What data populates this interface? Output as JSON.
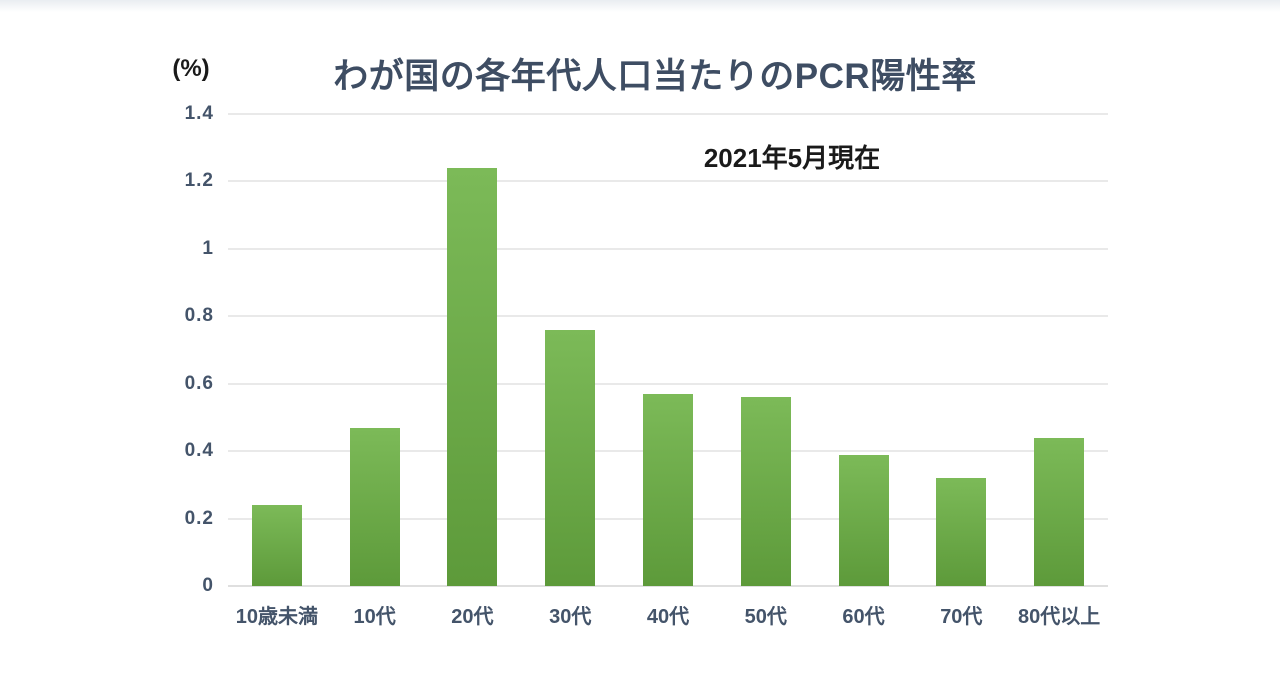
{
  "chart_data": {
    "type": "bar",
    "title": "わが国の各年代人口当たりのPCR陽性率",
    "subtitle": "2021年5月現在",
    "unit_label": "(%)",
    "categories": [
      "10歳未満",
      "10代",
      "20代",
      "30代",
      "40代",
      "50代",
      "60代",
      "70代",
      "80代以上"
    ],
    "values": [
      0.24,
      0.47,
      1.24,
      0.76,
      0.57,
      0.56,
      0.39,
      0.32,
      0.44
    ],
    "ylabel": "(%)",
    "xlabel": "",
    "ylim": [
      0,
      1.4
    ],
    "ytick_step": 0.2,
    "yticks": [
      "0",
      "0.2",
      "0.4",
      "0.6",
      "0.8",
      "1",
      "1.2",
      "1.4"
    ],
    "grid": true,
    "legend": "none",
    "colors": {
      "bar_top": "#7cba58",
      "bar_bottom": "#5d9a3a",
      "title": "#3e4d63",
      "subtitle": "#1a1a1a",
      "axis_labels": "#44546a",
      "gridline": "#e9e9e9",
      "background": "#ffffff"
    }
  }
}
